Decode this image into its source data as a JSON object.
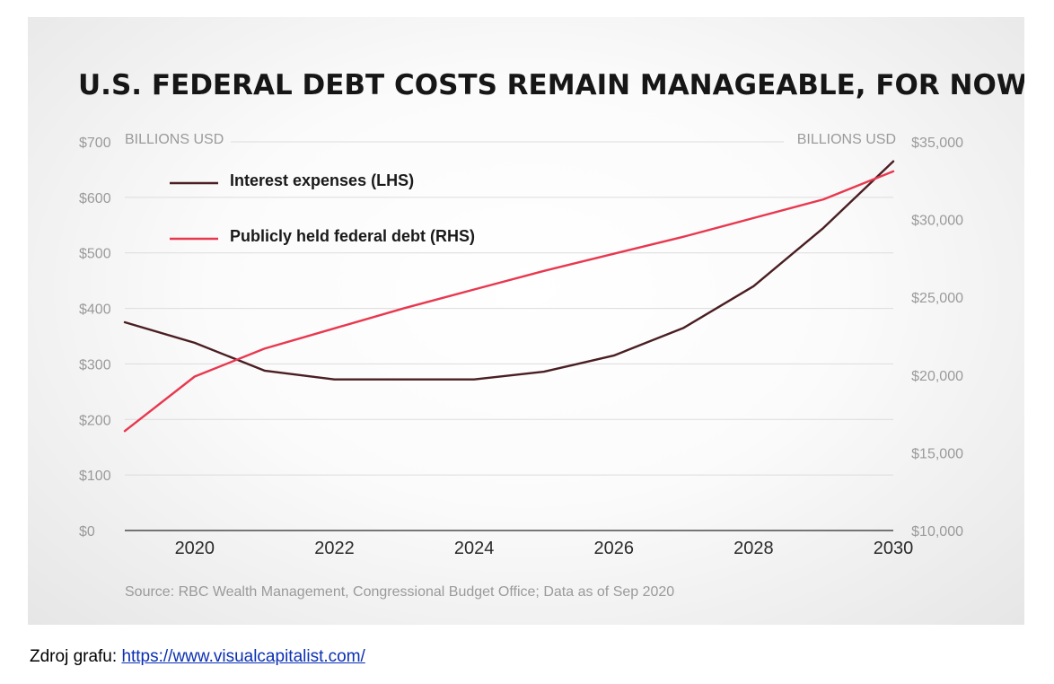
{
  "chart_data": {
    "type": "line",
    "title": "U.S. FEDERAL DEBT COSTS REMAIN MANAGEABLE, FOR NOW",
    "left_axis_label": "BILLIONS USD",
    "right_axis_label": "BILLIONS USD",
    "left_ticks": [
      "$0",
      "$100",
      "$200",
      "$300",
      "$400",
      "$500",
      "$600",
      "$700"
    ],
    "right_ticks": [
      "$10,000",
      "$15,000",
      "$20,000",
      "$25,000",
      "$30,000",
      "$35,000"
    ],
    "ylim_left": [
      0,
      700
    ],
    "ylim_right": [
      10000,
      35000
    ],
    "x_ticks": [
      "2020",
      "2022",
      "2024",
      "2026",
      "2028",
      "2030"
    ],
    "x_tick_values": [
      2020,
      2022,
      2024,
      2026,
      2028,
      2030
    ],
    "xlim": [
      2019,
      2030
    ],
    "x": [
      2019,
      2020,
      2021,
      2022,
      2023,
      2024,
      2025,
      2026,
      2027,
      2028,
      2029,
      2030
    ],
    "series": [
      {
        "name": "Interest expenses (LHS)",
        "axis": "left",
        "color": "#4a1e22",
        "values": [
          375,
          338,
          288,
          272,
          272,
          272,
          286,
          315,
          365,
          440,
          545,
          665
        ]
      },
      {
        "name": "Publicly held federal debt (RHS)",
        "axis": "right",
        "color": "#e8384f",
        "values": [
          16400,
          19900,
          21700,
          23000,
          24300,
          25500,
          26700,
          27800,
          28900,
          30100,
          31300,
          33100
        ]
      }
    ],
    "grid": true,
    "legend_position": "top-left",
    "source": "Source: RBC Wealth Management, Congressional Budget Office; Data as of Sep 2020"
  },
  "footer": {
    "label": "Zdroj grafu:",
    "link_text": "https://www.visualcapitalist.com/"
  }
}
